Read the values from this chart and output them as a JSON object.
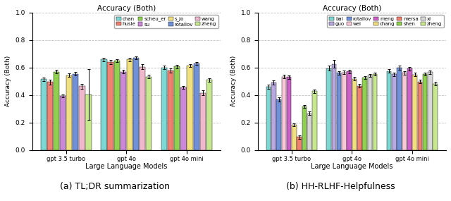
{
  "title": "Accuracy (Both)",
  "ylabel": "Accuracy (Both)",
  "xlabel": "Large Language Models",
  "subplot_a": {
    "title": "Accuracy (Both)",
    "caption": "(a) TL;DR summarization",
    "legend_labels": [
      "chan",
      "husle",
      "scheu_er",
      "su",
      "s_jo",
      "rotallov",
      "wang",
      "zheng"
    ],
    "colors": [
      "#7dd8d4",
      "#f08070",
      "#90d050",
      "#cc88d8",
      "#f0e080",
      "#7090d8",
      "#f0b8cc",
      "#c8e890"
    ],
    "groups": [
      "gpt 3.5 turbo",
      "gpt 4o",
      "gpt 4o mini"
    ],
    "values": [
      [
        0.515,
        0.658,
        0.6
      ],
      [
        0.495,
        0.638,
        0.58
      ],
      [
        0.57,
        0.65,
        0.608
      ],
      [
        0.395,
        0.57,
        0.455
      ],
      [
        0.545,
        0.658,
        0.615
      ],
      [
        0.555,
        0.67,
        0.63
      ],
      [
        0.465,
        0.605,
        0.415
      ],
      [
        0.405,
        0.535,
        0.51
      ]
    ],
    "errors": [
      [
        0.012,
        0.012,
        0.012
      ],
      [
        0.018,
        0.015,
        0.015
      ],
      [
        0.012,
        0.012,
        0.012
      ],
      [
        0.012,
        0.012,
        0.012
      ],
      [
        0.012,
        0.012,
        0.012
      ],
      [
        0.012,
        0.012,
        0.012
      ],
      [
        0.018,
        0.018,
        0.018
      ],
      [
        0.185,
        0.012,
        0.012
      ]
    ],
    "n_legend_cols": 4
  },
  "subplot_b": {
    "title": "Accuracy (Both)",
    "caption": "(b) HH-RLHF-Helpfulness",
    "legend_labels": [
      "bai",
      "guo",
      "rotallov",
      "wei",
      "meng",
      "chang",
      "mersa",
      "shen",
      "xi",
      "zheng"
    ],
    "colors": [
      "#7dd8d4",
      "#b8a8e0",
      "#7090d8",
      "#f8c8d8",
      "#cc60c8",
      "#f0e080",
      "#f08070",
      "#90d050",
      "#d8d8d8",
      "#c8e890"
    ],
    "groups": [
      "gpt 3.5 turbo",
      "gpt 4o",
      "gpt 4o mini"
    ],
    "values": [
      [
        0.46,
        0.595,
        0.575
      ],
      [
        0.49,
        0.625,
        0.552
      ],
      [
        0.37,
        0.562,
        0.598
      ],
      [
        0.535,
        0.565,
        0.562
      ],
      [
        0.53,
        0.572,
        0.593
      ],
      [
        0.185,
        0.518,
        0.55
      ],
      [
        0.095,
        0.468,
        0.498
      ],
      [
        0.318,
        0.528,
        0.553
      ],
      [
        0.268,
        0.543,
        0.566
      ],
      [
        0.428,
        0.553,
        0.483
      ]
    ],
    "errors": [
      [
        0.015,
        0.018,
        0.012
      ],
      [
        0.015,
        0.028,
        0.012
      ],
      [
        0.015,
        0.012,
        0.015
      ],
      [
        0.012,
        0.012,
        0.012
      ],
      [
        0.012,
        0.012,
        0.012
      ],
      [
        0.012,
        0.012,
        0.012
      ],
      [
        0.012,
        0.012,
        0.012
      ],
      [
        0.012,
        0.012,
        0.012
      ],
      [
        0.012,
        0.012,
        0.012
      ],
      [
        0.012,
        0.012,
        0.012
      ]
    ],
    "n_legend_cols": 5
  },
  "ylim": [
    0.0,
    1.0
  ],
  "yticks": [
    0.0,
    0.2,
    0.4,
    0.6,
    0.8,
    1.0
  ],
  "grid_color": "#c0c0c0",
  "bar_edgecolor": "black",
  "background_color": "white"
}
